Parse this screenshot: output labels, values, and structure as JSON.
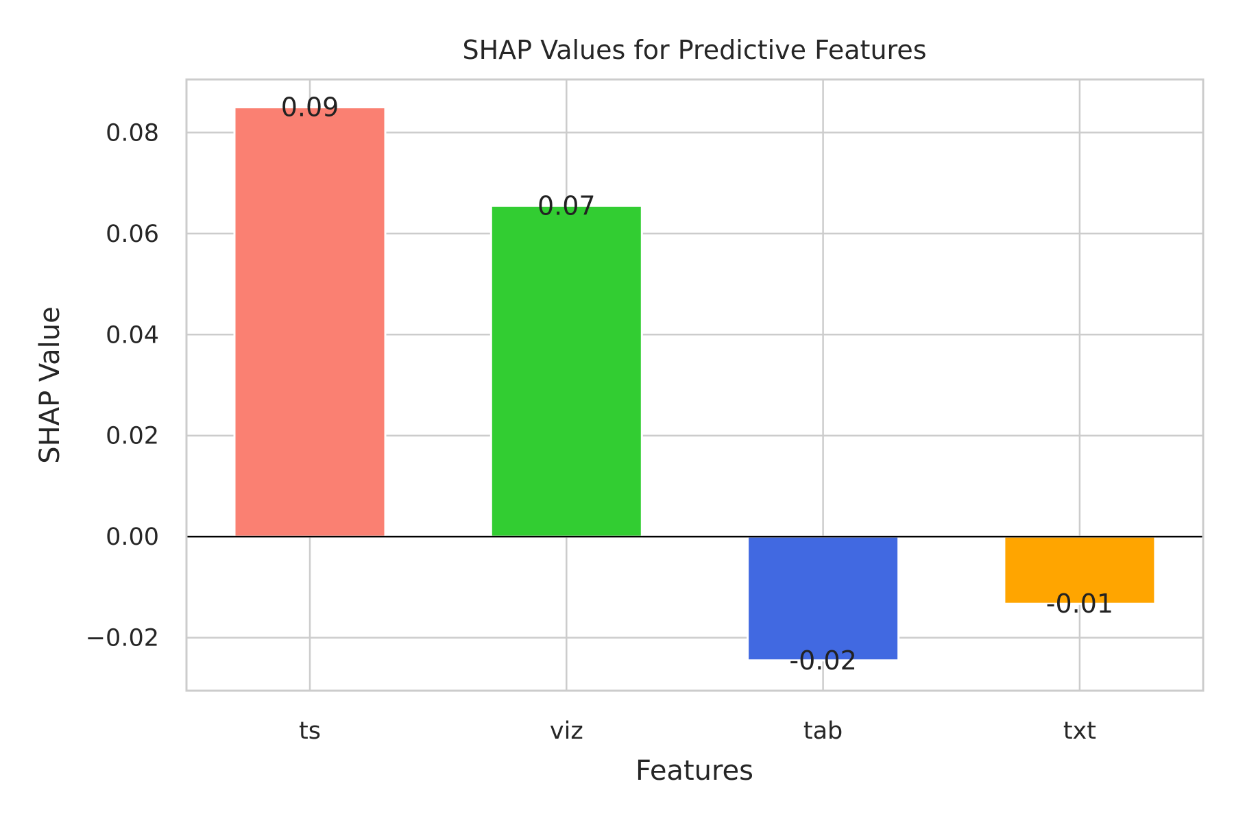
{
  "chart_data": {
    "type": "bar",
    "title": "SHAP Values for Predictive Features",
    "xlabel": "Features",
    "ylabel": "SHAP Value",
    "categories": [
      "ts",
      "viz",
      "tab",
      "txt"
    ],
    "values": [
      0.085,
      0.0655,
      -0.0245,
      -0.0133
    ],
    "data_labels": [
      "0.09",
      "0.07",
      "-0.02",
      "-0.01"
    ],
    "colors": [
      "#fa8072",
      "#32cd32",
      "#4169e1",
      "#ffa500"
    ],
    "ylim": [
      -0.0305,
      0.0905
    ],
    "yticks": [
      -0.02,
      0.0,
      0.02,
      0.04,
      0.06,
      0.08
    ],
    "ytick_labels": [
      "−0.02",
      "0.00",
      "0.02",
      "0.04",
      "0.06",
      "0.08"
    ],
    "grid": true,
    "zero_line": true,
    "legend": "none"
  }
}
